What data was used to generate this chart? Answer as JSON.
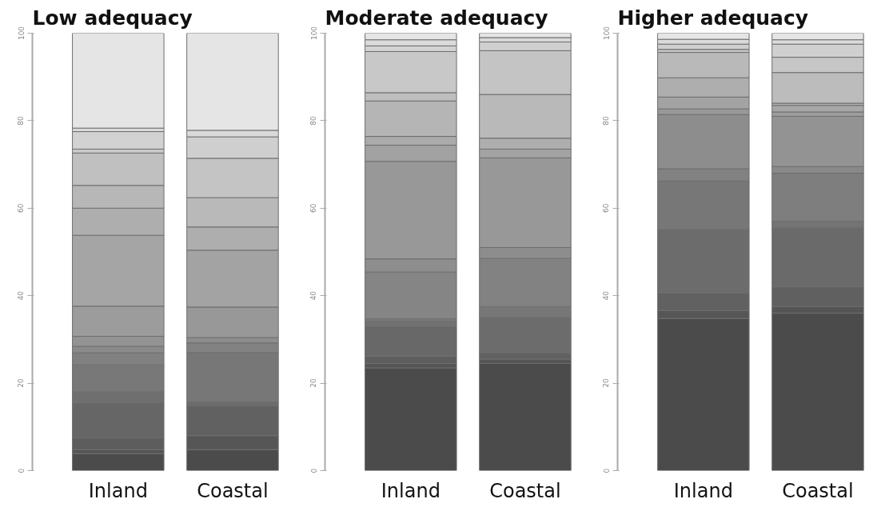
{
  "chart_data": [
    {
      "type": "bar",
      "stacked": true,
      "title": "Low adequacy",
      "categories": [
        "Inland",
        "Coastal"
      ],
      "ylim": [
        0,
        100
      ],
      "yticks": [
        0,
        20,
        40,
        60,
        80,
        100
      ],
      "series": [
        {
          "values": [
            3.9,
            4.8
          ],
          "colors": [
            "#4b4b4b",
            "#4b4b4b"
          ]
        },
        {
          "values": [
            0.9,
            3.2
          ],
          "colors": [
            "#545454",
            "#565656"
          ]
        },
        {
          "values": [
            2.7,
            6.8
          ],
          "colors": [
            "#5d5d5d",
            "#616161"
          ]
        },
        {
          "values": [
            8.0,
            0.9
          ],
          "colors": [
            "#666666",
            "#6c6c6c"
          ]
        },
        {
          "values": [
            2.5,
            11.3
          ],
          "colors": [
            "#6f6f6f",
            "#777777"
          ]
        },
        {
          "values": [
            6.2,
            2.2
          ],
          "colors": [
            "#787878",
            "#828282"
          ]
        },
        {
          "values": [
            2.7,
            1.2
          ],
          "colors": [
            "#818181",
            "#8d8d8d"
          ]
        },
        {
          "values": [
            1.5,
            7.0
          ],
          "colors": [
            "#8a8a8a",
            "#989898"
          ]
        },
        {
          "values": [
            2.3,
            13.0
          ],
          "colors": [
            "#939393",
            "#a3a3a3"
          ]
        },
        {
          "values": [
            6.9,
            5.3
          ],
          "colors": [
            "#9c9c9c",
            "#aeaeae"
          ]
        },
        {
          "values": [
            16.2,
            6.7
          ],
          "colors": [
            "#a5a5a5",
            "#b9b9b9"
          ]
        },
        {
          "values": [
            6.2,
            9.0
          ],
          "colors": [
            "#aeaeae",
            "#c4c4c4"
          ]
        },
        {
          "values": [
            5.2,
            4.9
          ],
          "colors": [
            "#b7b7b7",
            "#cfcfcf"
          ]
        },
        {
          "values": [
            7.4,
            1.5
          ],
          "colors": [
            "#c0c0c0",
            "#dadada"
          ]
        },
        {
          "values": [
            0.9,
            22.2
          ],
          "colors": [
            "#c9c9c9",
            "#e5e5e5"
          ]
        },
        {
          "values": [
            4.0,
            null
          ],
          "colors": [
            "#d2d2d2",
            null
          ]
        },
        {
          "values": [
            0.8,
            null
          ],
          "colors": [
            "#dbdbdb",
            null
          ]
        },
        {
          "values": [
            21.7,
            null
          ],
          "colors": [
            "#e5e5e5",
            null
          ]
        }
      ]
    },
    {
      "type": "bar",
      "stacked": true,
      "title": "Moderate adequacy",
      "categories": [
        "Inland",
        "Coastal"
      ],
      "ylim": [
        0,
        100
      ],
      "yticks": [
        0,
        20,
        40,
        60,
        80,
        100
      ],
      "series": [
        {
          "values": [
            23.5,
            24.5
          ],
          "colors": [
            "#4b4b4b",
            "#4b4b4b"
          ]
        },
        {
          "values": [
            1.0,
            1.0
          ],
          "colors": [
            "#555555",
            "#565656"
          ]
        },
        {
          "values": [
            1.7,
            1.5
          ],
          "colors": [
            "#5e5e5e",
            "#616161"
          ]
        },
        {
          "values": [
            6.7,
            8.0
          ],
          "colors": [
            "#686868",
            "#6c6c6c"
          ]
        },
        {
          "values": [
            1.2,
            2.5
          ],
          "colors": [
            "#727272",
            "#777777"
          ]
        },
        {
          "values": [
            0.6,
            11.0
          ],
          "colors": [
            "#7b7b7b",
            "#828282"
          ]
        },
        {
          "values": [
            10.7,
            2.5
          ],
          "colors": [
            "#858585",
            "#8d8d8d"
          ]
        },
        {
          "values": [
            3.0,
            20.5
          ],
          "colors": [
            "#8e8e8e",
            "#989898"
          ]
        },
        {
          "values": [
            22.3,
            2.0
          ],
          "colors": [
            "#989898",
            "#a3a3a3"
          ]
        },
        {
          "values": [
            3.7,
            2.5
          ],
          "colors": [
            "#a2a2a2",
            "#aeaeae"
          ]
        },
        {
          "values": [
            2.0,
            10.0
          ],
          "colors": [
            "#ababab",
            "#b9b9b9"
          ]
        },
        {
          "values": [
            8.1,
            10.0
          ],
          "colors": [
            "#b5b5b5",
            "#c4c4c4"
          ]
        },
        {
          "values": [
            1.9,
            2.0
          ],
          "colors": [
            "#bebebe",
            "#cfcfcf"
          ]
        },
        {
          "values": [
            9.4,
            1.0
          ],
          "colors": [
            "#c8c8c8",
            "#dadada"
          ]
        },
        {
          "values": [
            1.3,
            1.0
          ],
          "colors": [
            "#d2d2d2",
            "#e5e5e5"
          ]
        },
        {
          "values": [
            1.4,
            null
          ],
          "colors": [
            "#dbdbdb",
            null
          ]
        },
        {
          "values": [
            1.5,
            null
          ],
          "colors": [
            "#e5e5e5",
            null
          ]
        }
      ]
    },
    {
      "type": "bar",
      "stacked": true,
      "title": "Higher adequacy",
      "categories": [
        "Inland",
        "Coastal"
      ],
      "ylim": [
        0,
        100
      ],
      "yticks": [
        0,
        20,
        40,
        60,
        80,
        100
      ],
      "series": [
        {
          "values": [
            34.8,
            36.0
          ],
          "colors": [
            "#4b4b4b",
            "#4b4b4b"
          ]
        },
        {
          "values": [
            1.8,
            1.5
          ],
          "colors": [
            "#565656",
            "#555555"
          ]
        },
        {
          "values": [
            4.0,
            4.5
          ],
          "colors": [
            "#616161",
            "#606060"
          ]
        },
        {
          "values": [
            14.5,
            13.5
          ],
          "colors": [
            "#6c6c6c",
            "#6a6a6a"
          ]
        },
        {
          "values": [
            11.1,
            1.5
          ],
          "colors": [
            "#777777",
            "#747474"
          ]
        },
        {
          "values": [
            2.8,
            11.0
          ],
          "colors": [
            "#828282",
            "#7e7e7e"
          ]
        },
        {
          "values": [
            12.4,
            1.5
          ],
          "colors": [
            "#8d8d8d",
            "#898989"
          ]
        },
        {
          "values": [
            1.3,
            11.5
          ],
          "colors": [
            "#989898",
            "#939393"
          ]
        },
        {
          "values": [
            2.7,
            1.0
          ],
          "colors": [
            "#a3a3a3",
            "#9d9d9d"
          ]
        },
        {
          "values": [
            4.4,
            1.5
          ],
          "colors": [
            "#aeaeae",
            "#a7a7a7"
          ]
        },
        {
          "values": [
            5.8,
            0.5
          ],
          "colors": [
            "#b9b9b9",
            "#b2b2b2"
          ]
        },
        {
          "values": [
            0.7,
            7.0
          ],
          "colors": [
            "#c4c4c4",
            "#bcbcbc"
          ]
        },
        {
          "values": [
            1.2,
            3.5
          ],
          "colors": [
            "#cfcfcf",
            "#c6c6c6"
          ]
        },
        {
          "values": [
            1.1,
            3.0
          ],
          "colors": [
            "#dadada",
            "#d0d0d0"
          ]
        },
        {
          "values": [
            1.4,
            1.0
          ],
          "colors": [
            "#e5e5e5",
            "#dbdbdb"
          ]
        },
        {
          "values": [
            null,
            1.5
          ],
          "colors": [
            null,
            "#e5e5e5"
          ]
        }
      ]
    }
  ]
}
